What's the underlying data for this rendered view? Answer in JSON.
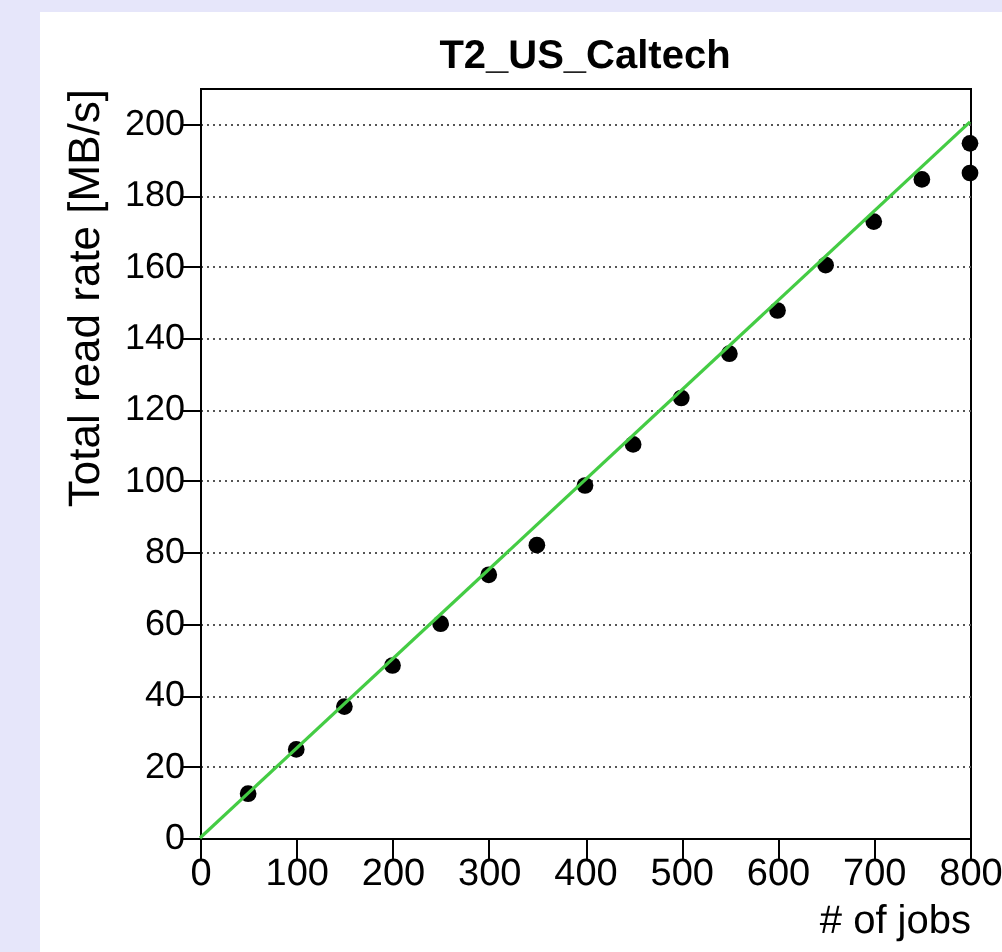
{
  "chart_data": {
    "type": "scatter",
    "title": "T2_US_Caltech",
    "xlabel": "# of jobs",
    "ylabel": "Total read rate [MB/s]",
    "xlim": [
      0,
      800
    ],
    "ylim": [
      0,
      210
    ],
    "xticks": [
      0,
      100,
      200,
      300,
      400,
      500,
      600,
      700,
      800
    ],
    "yticks": [
      0,
      20,
      40,
      60,
      80,
      100,
      120,
      140,
      160,
      180,
      200
    ],
    "grid": "y",
    "series": [
      {
        "type": "scatter",
        "marker": "circle",
        "color": "#000000",
        "x": [
          50,
          100,
          150,
          200,
          250,
          300,
          350,
          400,
          450,
          500,
          550,
          600,
          650,
          700,
          750,
          800,
          800
        ],
        "values": [
          12.4,
          24.8,
          36.8,
          48.3,
          60,
          73.7,
          82,
          98.7,
          110.2,
          123.2,
          135.6,
          147.7,
          160.4,
          172.6,
          184.4,
          194.5,
          186.2
        ]
      },
      {
        "type": "line",
        "line_style": "solid",
        "color": "#44cc44",
        "x": [
          0,
          800
        ],
        "values": [
          0,
          200.5
        ]
      }
    ]
  }
}
